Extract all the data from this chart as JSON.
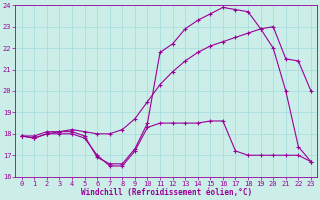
{
  "xlabel": "Windchill (Refroidissement éolien,°C)",
  "background_color": "#cceee8",
  "grid_color": "#aadddd",
  "line_color": "#990099",
  "xlim": [
    -0.5,
    23.5
  ],
  "ylim": [
    16,
    24
  ],
  "xticks": [
    0,
    1,
    2,
    3,
    4,
    5,
    6,
    7,
    8,
    9,
    10,
    11,
    12,
    13,
    14,
    15,
    16,
    17,
    18,
    19,
    20,
    21,
    22,
    23
  ],
  "yticks": [
    16,
    17,
    18,
    19,
    20,
    21,
    22,
    23,
    24
  ],
  "line1_x": [
    0,
    1,
    2,
    3,
    4,
    5,
    6,
    7,
    8,
    9,
    10,
    11,
    12,
    13,
    14,
    15,
    16,
    17,
    18,
    19,
    20,
    21,
    22,
    23
  ],
  "line1_y": [
    17.9,
    17.8,
    18.0,
    18.1,
    18.1,
    17.9,
    16.9,
    16.6,
    16.6,
    17.3,
    18.5,
    21.8,
    22.2,
    22.9,
    23.3,
    23.6,
    23.9,
    23.8,
    23.7,
    22.9,
    22.0,
    20.0,
    17.4,
    16.7
  ],
  "line2_x": [
    0,
    1,
    2,
    3,
    4,
    5,
    6,
    7,
    8,
    9,
    10,
    11,
    12,
    13,
    14,
    15,
    16,
    17,
    18,
    19,
    20,
    21,
    22,
    23
  ],
  "line2_y": [
    17.9,
    17.9,
    18.1,
    18.1,
    18.2,
    18.1,
    18.0,
    18.0,
    18.2,
    18.7,
    19.5,
    20.3,
    20.9,
    21.4,
    21.8,
    22.1,
    22.3,
    22.5,
    22.7,
    22.9,
    23.0,
    21.5,
    21.4,
    20.0
  ],
  "line3_x": [
    0,
    1,
    2,
    3,
    4,
    5,
    6,
    7,
    8,
    9,
    10,
    11,
    12,
    13,
    14,
    15,
    16,
    17,
    18,
    19,
    20,
    21,
    22,
    23
  ],
  "line3_y": [
    17.9,
    17.8,
    18.0,
    18.0,
    18.0,
    17.8,
    17.0,
    16.5,
    16.5,
    17.2,
    18.3,
    18.5,
    18.5,
    18.5,
    18.5,
    18.6,
    18.6,
    17.2,
    17.0,
    17.0,
    17.0,
    17.0,
    17.0,
    16.7
  ]
}
